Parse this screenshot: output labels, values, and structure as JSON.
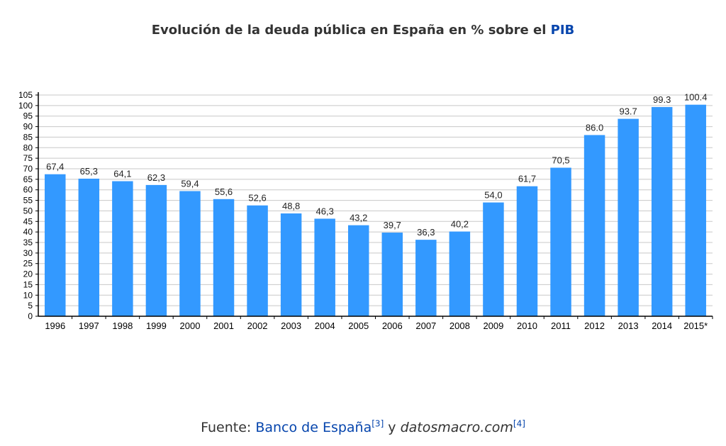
{
  "title": {
    "text": "Evolución de la deuda pública en España en % sobre el ",
    "link": "PIB"
  },
  "footer": {
    "prefix": "Fuente: ",
    "source1": "Banco de España",
    "ref1": "[3]",
    "connector": " y ",
    "source2": "datosmacro.com",
    "ref2": "[4]"
  },
  "colors": {
    "bar": "#3399ff",
    "grid": "#c8c8c8",
    "axis": "#000000",
    "text": "#333333",
    "link": "#0645ad"
  },
  "chart_data": {
    "type": "bar",
    "title": "Evolución de la deuda pública en España en % sobre el PIB",
    "xlabel": "",
    "ylabel": "",
    "ylim": [
      0,
      105
    ],
    "yticks": [
      0,
      5,
      10,
      15,
      20,
      25,
      30,
      35,
      40,
      45,
      50,
      55,
      60,
      65,
      70,
      75,
      80,
      85,
      90,
      95,
      100,
      105
    ],
    "grid": true,
    "categories": [
      "1996",
      "1997",
      "1998",
      "1999",
      "2000",
      "2001",
      "2002",
      "2003",
      "2004",
      "2005",
      "2006",
      "2007",
      "2008",
      "2009",
      "2010",
      "2011",
      "2012",
      "2013",
      "2014",
      "2015*"
    ],
    "values": [
      67.4,
      65.3,
      64.1,
      62.3,
      59.4,
      55.6,
      52.6,
      48.8,
      46.3,
      43.2,
      39.7,
      36.3,
      40.2,
      54.0,
      61.7,
      70.5,
      86.0,
      93.7,
      99.3,
      100.4
    ],
    "labels": [
      "67,4",
      "65,3",
      "64,1",
      "62,3",
      "59,4",
      "55,6",
      "52,6",
      "48,8",
      "46,3",
      "43,2",
      "39,7",
      "36,3",
      "40,2",
      "54,0",
      "61,7",
      "70,5",
      "86.0",
      "93.7",
      "99.3",
      "100.4"
    ]
  }
}
